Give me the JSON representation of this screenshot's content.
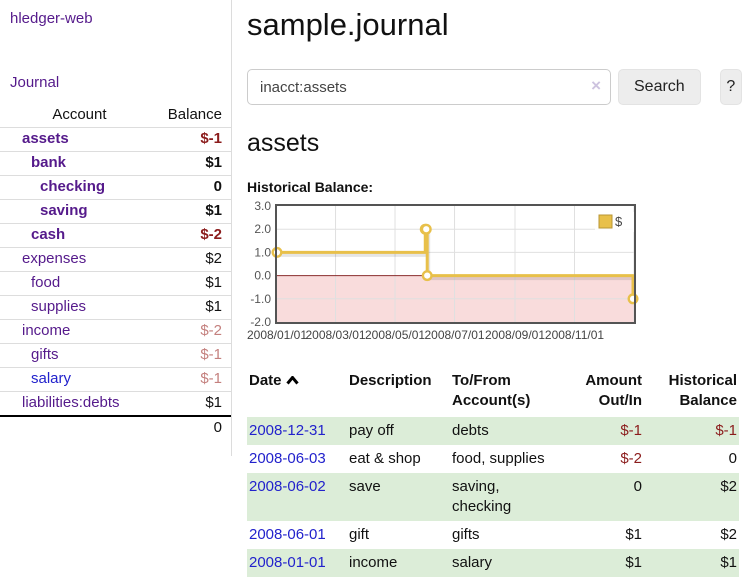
{
  "sidebar": {
    "app_title": "hledger-web",
    "nav_journal": "Journal",
    "accounts": {
      "headers": {
        "account": "Account",
        "balance": "Balance"
      },
      "rows": [
        {
          "account": "assets",
          "depth": 1,
          "bold": true,
          "balance": "$-1",
          "balance_style": "neg-strong",
          "link": "visited"
        },
        {
          "account": "bank",
          "depth": 2,
          "bold": true,
          "balance": "$1",
          "balance_style": "normal",
          "link": "visited"
        },
        {
          "account": "checking",
          "depth": 3,
          "bold": true,
          "balance": "0",
          "balance_style": "normal",
          "link": "visited"
        },
        {
          "account": "saving",
          "depth": 3,
          "bold": true,
          "balance": "$1",
          "balance_style": "normal",
          "link": "visited"
        },
        {
          "account": "cash",
          "depth": 2,
          "bold": true,
          "balance": "$-2",
          "balance_style": "neg-strong",
          "link": "visited"
        },
        {
          "account": "expenses",
          "depth": 1,
          "bold": false,
          "balance": "$2",
          "balance_style": "normal",
          "link": "visited"
        },
        {
          "account": "food",
          "depth": 2,
          "bold": false,
          "balance": "$1",
          "balance_style": "normal",
          "link": "visited"
        },
        {
          "account": "supplies",
          "depth": 2,
          "bold": false,
          "balance": "$1",
          "balance_style": "normal",
          "link": "visited"
        },
        {
          "account": "income",
          "depth": 1,
          "bold": false,
          "balance": "$-2",
          "balance_style": "neg-muted",
          "link": "visited"
        },
        {
          "account": "gifts",
          "depth": 2,
          "bold": false,
          "balance": "$-1",
          "balance_style": "neg-muted",
          "link": "visited"
        },
        {
          "account": "salary",
          "depth": 2,
          "bold": false,
          "balance": "$-1",
          "balance_style": "neg-muted",
          "link": "unvisited"
        },
        {
          "account": "liabilities:debts",
          "depth": 1,
          "bold": false,
          "balance": "$1",
          "balance_style": "normal",
          "link": "visited"
        }
      ],
      "total": "0"
    }
  },
  "main": {
    "page_title": "sample.journal",
    "search": {
      "value": "inacct:assets",
      "clear_icon": "×",
      "search_button": "Search",
      "help_button": "?"
    },
    "account_heading": "assets",
    "chart_heading": "Historical Balance:"
  },
  "chart_data": {
    "type": "line",
    "title": "Historical Balance of assets",
    "step": true,
    "legend": [
      {
        "label": "$",
        "color": "#e8c04a"
      }
    ],
    "legend_position": "top-right",
    "ylim": [
      -2,
      3
    ],
    "y_ticks": [
      3.0,
      2.0,
      1.0,
      0.0,
      -1.0,
      -2.0
    ],
    "y_tick_labels": [
      "3.0",
      "2.0",
      "1.0",
      "0.0",
      "-1.0",
      "-2.0"
    ],
    "x_domain_days": [
      0,
      366
    ],
    "x_tick_days": [
      0,
      60,
      121,
      182,
      244,
      305
    ],
    "x_tick_labels": [
      "2008/01/01",
      "2008/03/01",
      "2008/05/01",
      "2008/07/01",
      "2008/09/01",
      "2008/11/01"
    ],
    "points": [
      {
        "date": "2008-01-01",
        "day": 0,
        "value": 1
      },
      {
        "date": "2008-06-01",
        "day": 152,
        "value": 2
      },
      {
        "date": "2008-06-02",
        "day": 153,
        "value": 2
      },
      {
        "date": "2008-06-03",
        "day": 154,
        "value": 0
      },
      {
        "date": "2008-12-31",
        "day": 365,
        "value": -1
      }
    ],
    "grid": true,
    "series_color": "#e8c04a",
    "marker_fill": "#ffffff",
    "negative_region_color": "#f9dcdc",
    "zero_line_color": "#8a2b2b",
    "gridline_color": "#e0e0e0",
    "border_color": "#545454"
  },
  "register": {
    "headers": {
      "date": "Date",
      "description": "Description",
      "accounts": "To/From Account(s)",
      "amount": "Amount Out/In",
      "balance": "Historical Balance"
    },
    "sort": {
      "column": "date",
      "direction": "ascending"
    },
    "rows": [
      {
        "date": "2008-12-31",
        "description": "pay off",
        "accounts": "debts",
        "amount": "$-1",
        "amount_negative": true,
        "balance": "$-1",
        "balance_negative": true,
        "highlight": true
      },
      {
        "date": "2008-06-03",
        "description": "eat & shop",
        "accounts": "food, supplies",
        "amount": "$-2",
        "amount_negative": true,
        "balance": "0",
        "balance_negative": false,
        "highlight": false
      },
      {
        "date": "2008-06-02",
        "description": "save",
        "accounts": "saving, checking",
        "amount": "0",
        "amount_negative": false,
        "balance": "$2",
        "balance_negative": false,
        "highlight": true
      },
      {
        "date": "2008-06-01",
        "description": "gift",
        "accounts": "gifts",
        "amount": "$1",
        "amount_negative": false,
        "balance": "$2",
        "balance_negative": false,
        "highlight": false
      },
      {
        "date": "2008-01-01",
        "description": "income",
        "accounts": "salary",
        "amount": "$1",
        "amount_negative": false,
        "balance": "$1",
        "balance_negative": false,
        "highlight": true
      }
    ]
  },
  "colors": {
    "link_visited": "#551a8b",
    "link_unvisited": "#2222cc",
    "negative_strong": "#8b1c1c",
    "negative_muted": "#c4807e",
    "row_highlight": "#dcedd8"
  }
}
